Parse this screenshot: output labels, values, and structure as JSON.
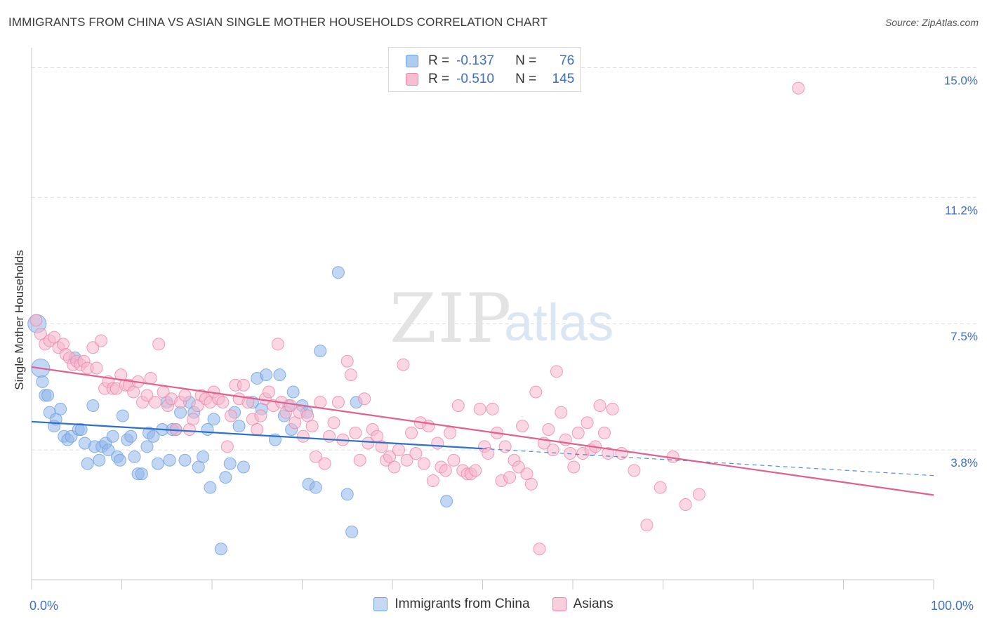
{
  "header": {
    "title": "IMMIGRANTS FROM CHINA VS ASIAN SINGLE MOTHER HOUSEHOLDS CORRELATION CHART",
    "source": "Source: ZipAtlas.com"
  },
  "watermark": {
    "zip": "ZIP",
    "atlas": "atlas"
  },
  "legend": {
    "rows": [
      {
        "r_label": "R =",
        "r_value": "-0.137",
        "n_label": "N =",
        "n_value": "76",
        "color": "#aecbf0",
        "border": "#6f9fe0"
      },
      {
        "r_label": "R =",
        "r_value": "-0.510",
        "n_label": "N =",
        "n_value": "145",
        "color": "#f8bdd1",
        "border": "#ec86a8"
      }
    ]
  },
  "bottom_legend": {
    "china": "Immigrants from China",
    "asians": "Asians"
  },
  "chart_data": {
    "type": "scatter",
    "title": "IMMIGRANTS FROM CHINA VS ASIAN SINGLE MOTHER HOUSEHOLDS CORRELATION CHART",
    "ylabel": "Single Mother Households",
    "xlabel": "",
    "x_tick_labels": [
      "0.0%",
      "100.0%"
    ],
    "y_ticks": [
      3.8,
      7.5,
      11.2,
      15.0
    ],
    "y_tick_labels": [
      "3.8%",
      "7.5%",
      "11.2%",
      "15.0%"
    ],
    "xlim": [
      0,
      100
    ],
    "ylim": [
      0,
      15.4
    ],
    "grid": "horizontal dashed",
    "series": [
      {
        "name": "Immigrants from China",
        "color": "#8fb6ea",
        "stroke": "#6f9fe0",
        "trend": {
          "x": [
            0,
            50
          ],
          "y": [
            4.63,
            3.84
          ]
        },
        "trend_dashed_ext": {
          "x": [
            50,
            100
          ],
          "y": [
            3.84,
            3.05
          ]
        },
        "line_color": "#2c6fcc",
        "points": [
          [
            0.6,
            7.5
          ],
          [
            1.0,
            6.2
          ],
          [
            1.2,
            5.8
          ],
          [
            1.5,
            5.4
          ],
          [
            1.8,
            5.4
          ],
          [
            2.0,
            4.9
          ],
          [
            2.5,
            4.5
          ],
          [
            2.7,
            4.7
          ],
          [
            3.2,
            5.0
          ],
          [
            3.6,
            4.2
          ],
          [
            4.0,
            4.1
          ],
          [
            4.4,
            4.2
          ],
          [
            4.8,
            6.5
          ],
          [
            5.2,
            4.4
          ],
          [
            5.5,
            4.4
          ],
          [
            5.9,
            4.0
          ],
          [
            6.2,
            3.4
          ],
          [
            6.8,
            5.1
          ],
          [
            7.0,
            3.9
          ],
          [
            7.5,
            3.5
          ],
          [
            7.8,
            3.9
          ],
          [
            8.2,
            4.0
          ],
          [
            8.5,
            3.8
          ],
          [
            9.0,
            4.2
          ],
          [
            9.5,
            3.6
          ],
          [
            9.8,
            3.5
          ],
          [
            10.1,
            4.8
          ],
          [
            10.6,
            4.1
          ],
          [
            11.0,
            4.2
          ],
          [
            11.4,
            3.6
          ],
          [
            11.8,
            3.1
          ],
          [
            12.2,
            3.1
          ],
          [
            12.8,
            3.9
          ],
          [
            13.0,
            4.3
          ],
          [
            13.5,
            4.2
          ],
          [
            14.0,
            3.4
          ],
          [
            14.5,
            4.4
          ],
          [
            15.0,
            5.2
          ],
          [
            15.3,
            3.5
          ],
          [
            15.6,
            4.4
          ],
          [
            16.0,
            4.4
          ],
          [
            16.5,
            4.9
          ],
          [
            17.0,
            3.5
          ],
          [
            17.5,
            5.2
          ],
          [
            18.0,
            4.9
          ],
          [
            18.5,
            3.3
          ],
          [
            19.0,
            3.6
          ],
          [
            19.5,
            4.4
          ],
          [
            19.8,
            2.7
          ],
          [
            20.2,
            4.7
          ],
          [
            21.0,
            0.9
          ],
          [
            21.5,
            3.0
          ],
          [
            22.0,
            3.4
          ],
          [
            22.5,
            4.9
          ],
          [
            23.0,
            4.5
          ],
          [
            23.5,
            3.3
          ],
          [
            24.5,
            5.2
          ],
          [
            25.0,
            5.9
          ],
          [
            25.5,
            5.0
          ],
          [
            26.0,
            6.0
          ],
          [
            27.0,
            4.1
          ],
          [
            27.5,
            6.0
          ],
          [
            28.0,
            4.8
          ],
          [
            28.5,
            5.1
          ],
          [
            28.8,
            4.4
          ],
          [
            29.0,
            5.5
          ],
          [
            30.0,
            5.1
          ],
          [
            30.5,
            4.9
          ],
          [
            30.7,
            2.8
          ],
          [
            31.5,
            2.7
          ],
          [
            32.0,
            6.7
          ],
          [
            34.0,
            9.0
          ],
          [
            35.0,
            2.5
          ],
          [
            35.5,
            1.4
          ],
          [
            36.0,
            5.2
          ],
          [
            46.0,
            2.3
          ]
        ]
      },
      {
        "name": "Asians",
        "color": "#f6b7cc",
        "stroke": "#ec86a8",
        "trend": {
          "x": [
            0,
            100
          ],
          "y": [
            6.23,
            2.48
          ]
        },
        "line_color": "#e25f90",
        "points": [
          [
            0.5,
            7.6
          ],
          [
            1.0,
            7.2
          ],
          [
            1.5,
            6.9
          ],
          [
            2.0,
            7.0
          ],
          [
            2.5,
            7.1
          ],
          [
            3.0,
            6.8
          ],
          [
            3.5,
            6.9
          ],
          [
            3.8,
            6.6
          ],
          [
            4.2,
            6.5
          ],
          [
            4.6,
            6.3
          ],
          [
            5.0,
            6.4
          ],
          [
            5.4,
            6.3
          ],
          [
            5.8,
            6.4
          ],
          [
            6.2,
            6.2
          ],
          [
            6.8,
            6.8
          ],
          [
            7.2,
            6.2
          ],
          [
            7.7,
            7.0
          ],
          [
            8.1,
            5.6
          ],
          [
            8.5,
            5.8
          ],
          [
            9.0,
            5.6
          ],
          [
            9.4,
            5.6
          ],
          [
            9.9,
            6.0
          ],
          [
            10.4,
            5.7
          ],
          [
            10.8,
            5.7
          ],
          [
            11.3,
            5.5
          ],
          [
            11.8,
            5.8
          ],
          [
            12.3,
            5.2
          ],
          [
            12.8,
            5.4
          ],
          [
            13.2,
            5.9
          ],
          [
            13.7,
            5.2
          ],
          [
            14.1,
            6.9
          ],
          [
            14.6,
            5.5
          ],
          [
            15.1,
            5.1
          ],
          [
            15.5,
            5.3
          ],
          [
            16.0,
            4.4
          ],
          [
            16.5,
            5.2
          ],
          [
            17.0,
            5.4
          ],
          [
            17.5,
            4.4
          ],
          [
            17.9,
            4.7
          ],
          [
            18.4,
            5.1
          ],
          [
            18.8,
            5.4
          ],
          [
            19.3,
            5.3
          ],
          [
            19.8,
            5.2
          ],
          [
            20.2,
            5.5
          ],
          [
            20.7,
            5.3
          ],
          [
            21.2,
            5.2
          ],
          [
            21.7,
            3.9
          ],
          [
            22.1,
            4.8
          ],
          [
            22.6,
            5.7
          ],
          [
            23.0,
            5.3
          ],
          [
            23.5,
            5.7
          ],
          [
            24.0,
            5.2
          ],
          [
            24.5,
            4.7
          ],
          [
            25.0,
            4.4
          ],
          [
            25.4,
            4.8
          ],
          [
            25.9,
            5.3
          ],
          [
            26.3,
            5.5
          ],
          [
            26.8,
            5.1
          ],
          [
            27.3,
            6.9
          ],
          [
            27.7,
            5.2
          ],
          [
            28.2,
            4.9
          ],
          [
            28.7,
            5.1
          ],
          [
            29.2,
            4.6
          ],
          [
            29.7,
            4.9
          ],
          [
            30.1,
            4.2
          ],
          [
            30.6,
            4.8
          ],
          [
            31.1,
            4.5
          ],
          [
            31.5,
            3.6
          ],
          [
            32.0,
            5.2
          ],
          [
            32.5,
            3.4
          ],
          [
            33.0,
            4.2
          ],
          [
            33.5,
            4.6
          ],
          [
            34.0,
            5.2
          ],
          [
            34.5,
            4.1
          ],
          [
            35.0,
            6.4
          ],
          [
            35.4,
            6.0
          ],
          [
            35.9,
            4.3
          ],
          [
            36.4,
            3.5
          ],
          [
            36.9,
            5.3
          ],
          [
            37.3,
            4.0
          ],
          [
            37.8,
            4.4
          ],
          [
            38.3,
            4.2
          ],
          [
            38.8,
            3.9
          ],
          [
            39.3,
            3.5
          ],
          [
            39.7,
            3.6
          ],
          [
            40.2,
            3.3
          ],
          [
            40.7,
            3.8
          ],
          [
            41.2,
            6.3
          ],
          [
            41.6,
            3.5
          ],
          [
            42.1,
            4.3
          ],
          [
            42.6,
            3.7
          ],
          [
            43.1,
            4.6
          ],
          [
            43.5,
            3.4
          ],
          [
            44.0,
            4.5
          ],
          [
            44.5,
            2.9
          ],
          [
            45.0,
            4.0
          ],
          [
            45.4,
            3.3
          ],
          [
            45.9,
            3.2
          ],
          [
            46.4,
            4.3
          ],
          [
            46.8,
            3.5
          ],
          [
            47.3,
            5.1
          ],
          [
            47.8,
            3.2
          ],
          [
            48.3,
            3.1
          ],
          [
            48.7,
            3.1
          ],
          [
            49.2,
            3.2
          ],
          [
            49.7,
            5.0
          ],
          [
            50.2,
            3.9
          ],
          [
            50.6,
            3.7
          ],
          [
            51.1,
            5.0
          ],
          [
            51.6,
            4.3
          ],
          [
            52.1,
            2.9
          ],
          [
            52.5,
            3.9
          ],
          [
            53.0,
            3.0
          ],
          [
            53.5,
            3.5
          ],
          [
            54.0,
            3.3
          ],
          [
            54.4,
            4.5
          ],
          [
            54.9,
            3.1
          ],
          [
            55.4,
            2.8
          ],
          [
            55.9,
            5.5
          ],
          [
            56.3,
            0.9
          ],
          [
            56.8,
            4.0
          ],
          [
            57.3,
            4.4
          ],
          [
            57.8,
            3.8
          ],
          [
            58.2,
            6.1
          ],
          [
            58.7,
            4.9
          ],
          [
            59.2,
            4.1
          ],
          [
            59.7,
            3.7
          ],
          [
            60.1,
            3.3
          ],
          [
            60.6,
            4.3
          ],
          [
            61.1,
            3.7
          ],
          [
            61.6,
            4.6
          ],
          [
            62.0,
            3.8
          ],
          [
            62.5,
            3.9
          ],
          [
            63.0,
            5.1
          ],
          [
            63.5,
            4.3
          ],
          [
            63.9,
            3.7
          ],
          [
            64.4,
            5.0
          ],
          [
            65.4,
            3.7
          ],
          [
            66.8,
            3.2
          ],
          [
            68.2,
            1.6
          ],
          [
            69.7,
            2.7
          ],
          [
            71.1,
            3.6
          ],
          [
            72.5,
            2.2
          ],
          [
            74.0,
            2.5
          ],
          [
            85.0,
            14.4
          ]
        ]
      }
    ]
  }
}
